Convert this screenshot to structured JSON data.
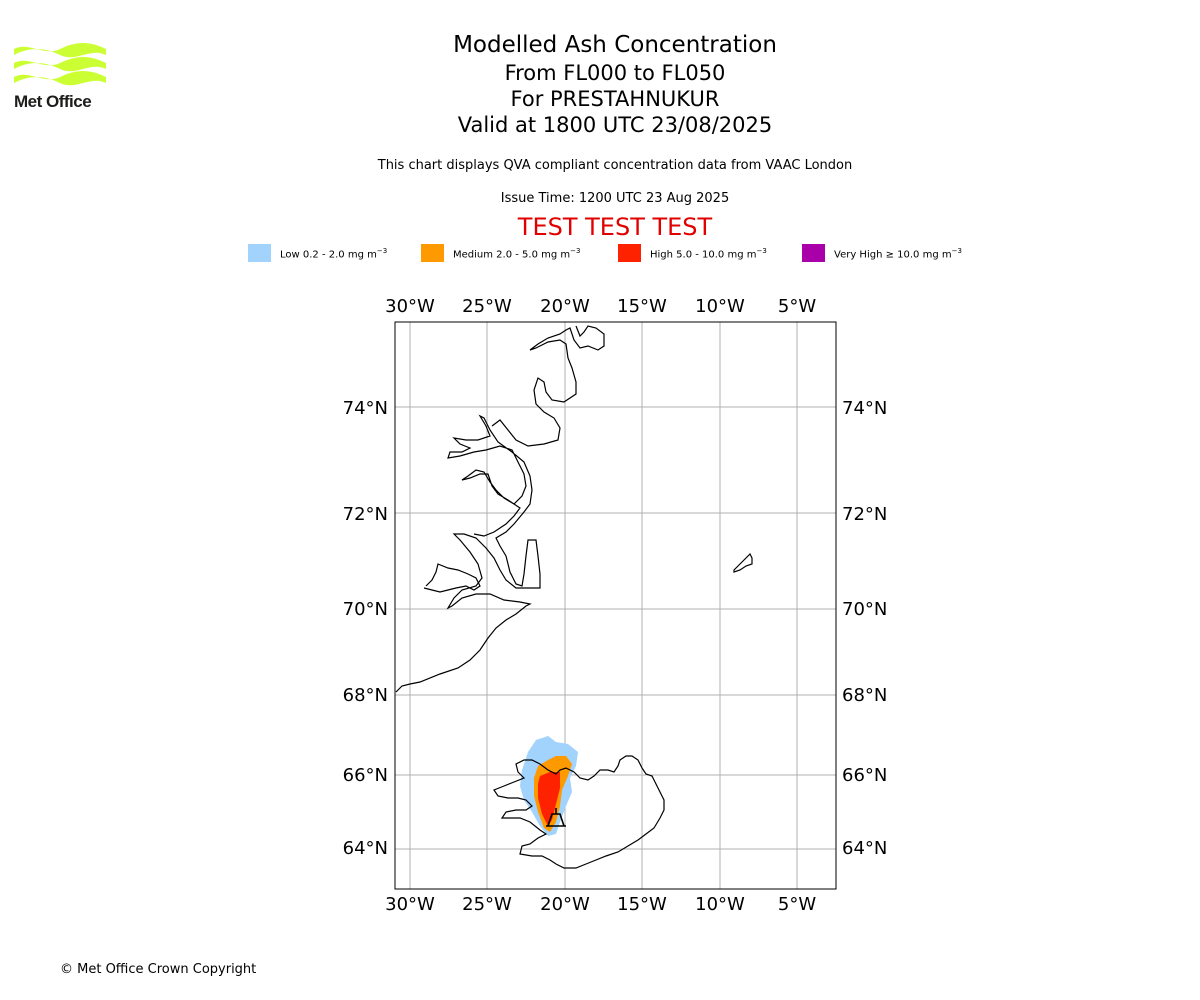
{
  "logo": {
    "text": "Met Office",
    "color": "#ccff33"
  },
  "title": {
    "line1": "Modelled Ash Concentration",
    "line2": "From FL000 to FL050",
    "line3": "For PRESTAHNUKUR",
    "line4": "Valid at 1800 UTC 23/08/2025"
  },
  "subtitle": "This chart displays QVA compliant concentration data from VAAC London",
  "issue_time": "Issue Time: 1200 UTC 23 Aug 2025",
  "test_banner": "TEST TEST TEST",
  "legend": [
    {
      "label": "Low 0.2 - 2.0 mg m",
      "exp": "−3",
      "color": "#a2d3fc"
    },
    {
      "label": "Medium 2.0 - 5.0 mg m",
      "exp": "−3",
      "color": "#ff9900"
    },
    {
      "label": "High 5.0 - 10.0 mg m",
      "exp": "−3",
      "color": "#ff2200"
    },
    {
      "label": "Very High  ≥  10.0 mg m",
      "exp": "−3",
      "color": "#aa00aa"
    }
  ],
  "map": {
    "lon_ticks": [
      "30°W",
      "25°W",
      "20°W",
      "15°W",
      "10°W",
      "5°W"
    ],
    "lat_ticks": [
      "74°N",
      "72°N",
      "70°N",
      "68°N",
      "66°N",
      "64°N"
    ]
  },
  "footer": "© Met Office Crown Copyright"
}
